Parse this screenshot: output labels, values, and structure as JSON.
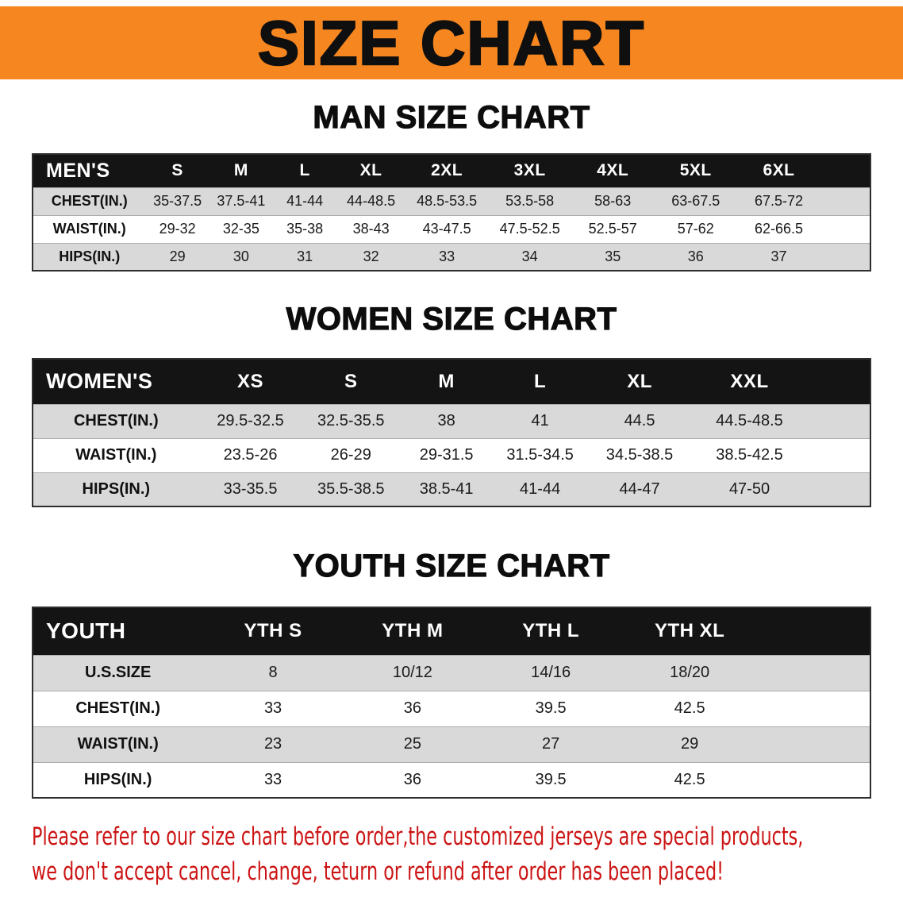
{
  "colors": {
    "banner-bg": "#f6861f",
    "header-bg": "#141414",
    "row-stripe": "#d9d9d9",
    "notice-red": "#cc1414"
  },
  "banner": {
    "title": "SIZE CHART"
  },
  "sections": [
    {
      "heading": "MAN SIZE CHART",
      "table": {
        "header": [
          "MEN'S",
          "S",
          "M",
          "L",
          "XL",
          "2XL",
          "3XL",
          "4XL",
          "5XL",
          "6XL"
        ],
        "rows": [
          [
            "CHEST(IN.)",
            "35-37.5",
            "37.5-41",
            "41-44",
            "44-48.5",
            "48.5-53.5",
            "53.5-58",
            "58-63",
            "63-67.5",
            "67.5-72"
          ],
          [
            "WAIST(IN.)",
            "29-32",
            "32-35",
            "35-38",
            "38-43",
            "43-47.5",
            "47.5-52.5",
            "52.5-57",
            "57-62",
            "62-66.5"
          ],
          [
            "HIPS(IN.)",
            "29",
            "30",
            "31",
            "32",
            "33",
            "34",
            "35",
            "36",
            "37"
          ]
        ]
      }
    },
    {
      "heading": "WOMEN SIZE CHART",
      "table": {
        "header": [
          "WOMEN'S",
          "XS",
          "S",
          "M",
          "L",
          "XL",
          "XXL"
        ],
        "rows": [
          [
            "CHEST(IN.)",
            "29.5-32.5",
            "32.5-35.5",
            "38",
            "41",
            "44.5",
            "44.5-48.5"
          ],
          [
            "WAIST(IN.)",
            "23.5-26",
            "26-29",
            "29-31.5",
            "31.5-34.5",
            "34.5-38.5",
            "38.5-42.5"
          ],
          [
            "HIPS(IN.)",
            "33-35.5",
            "35.5-38.5",
            "38.5-41",
            "41-44",
            "44-47",
            "47-50"
          ]
        ]
      }
    },
    {
      "heading": "YOUTH SIZE CHART",
      "table": {
        "header": [
          "YOUTH",
          "YTH S",
          "YTH M",
          "YTH L",
          "YTH XL"
        ],
        "rows": [
          [
            "U.S.SIZE",
            "8",
            "10/12",
            "14/16",
            "18/20"
          ],
          [
            "CHEST(IN.)",
            "33",
            "36",
            "39.5",
            "42.5"
          ],
          [
            "WAIST(IN.)",
            "23",
            "25",
            "27",
            "29"
          ],
          [
            "HIPS(IN.)",
            "33",
            "36",
            "39.5",
            "42.5"
          ]
        ]
      }
    }
  ],
  "notice": {
    "line1": "Please refer to our size chart before order,the customized jerseys are special products,",
    "line2": "we don't accept cancel, change, teturn or refund after order has been placed!"
  }
}
